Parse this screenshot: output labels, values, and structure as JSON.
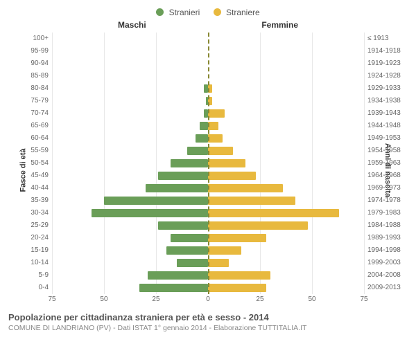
{
  "legend": {
    "male": {
      "label": "Stranieri",
      "color": "#6a9e58"
    },
    "female": {
      "label": "Straniere",
      "color": "#e8b93e"
    }
  },
  "header": {
    "male": "Maschi",
    "female": "Femmine"
  },
  "axis": {
    "left_title": "Fasce di età",
    "right_title": "Anni di nascita"
  },
  "xaxis": {
    "max": 75,
    "ticks": [
      75,
      50,
      25,
      0,
      25,
      50,
      75
    ]
  },
  "colors": {
    "male": "#6a9e58",
    "female": "#e8b93e",
    "grid": "#e8e8e8",
    "center_line": "#888833",
    "background": "#ffffff"
  },
  "style": {
    "bar_height_pct": 68,
    "tick_fontsize": 10,
    "label_fontsize": 10,
    "legend_fontsize": 12,
    "title_fontsize": 13,
    "subtitle_fontsize": 10.5
  },
  "rows": [
    {
      "age": "100+",
      "year": "≤ 1913",
      "m": 0,
      "f": 0
    },
    {
      "age": "95-99",
      "year": "1914-1918",
      "m": 0,
      "f": 0
    },
    {
      "age": "90-94",
      "year": "1919-1923",
      "m": 0,
      "f": 0
    },
    {
      "age": "85-89",
      "year": "1924-1928",
      "m": 0,
      "f": 0
    },
    {
      "age": "80-84",
      "year": "1929-1933",
      "m": 2,
      "f": 2
    },
    {
      "age": "75-79",
      "year": "1934-1938",
      "m": 1,
      "f": 2
    },
    {
      "age": "70-74",
      "year": "1939-1943",
      "m": 2,
      "f": 8
    },
    {
      "age": "65-69",
      "year": "1944-1948",
      "m": 4,
      "f": 5
    },
    {
      "age": "60-64",
      "year": "1949-1953",
      "m": 6,
      "f": 7
    },
    {
      "age": "55-59",
      "year": "1954-1958",
      "m": 10,
      "f": 12
    },
    {
      "age": "50-54",
      "year": "1959-1963",
      "m": 18,
      "f": 18
    },
    {
      "age": "45-49",
      "year": "1964-1968",
      "m": 24,
      "f": 23
    },
    {
      "age": "40-44",
      "year": "1969-1973",
      "m": 30,
      "f": 36
    },
    {
      "age": "35-39",
      "year": "1974-1978",
      "m": 50,
      "f": 42
    },
    {
      "age": "30-34",
      "year": "1979-1983",
      "m": 56,
      "f": 63
    },
    {
      "age": "25-29",
      "year": "1984-1988",
      "m": 24,
      "f": 48
    },
    {
      "age": "20-24",
      "year": "1989-1993",
      "m": 18,
      "f": 28
    },
    {
      "age": "15-19",
      "year": "1994-1998",
      "m": 20,
      "f": 16
    },
    {
      "age": "10-14",
      "year": "1999-2003",
      "m": 15,
      "f": 10
    },
    {
      "age": "5-9",
      "year": "2004-2008",
      "m": 29,
      "f": 30
    },
    {
      "age": "0-4",
      "year": "2009-2013",
      "m": 33,
      "f": 28
    }
  ],
  "caption": {
    "title": "Popolazione per cittadinanza straniera per età e sesso - 2014",
    "subtitle": "COMUNE DI LANDRIANO (PV) - Dati ISTAT 1° gennaio 2014 - Elaborazione TUTTITALIA.IT"
  }
}
